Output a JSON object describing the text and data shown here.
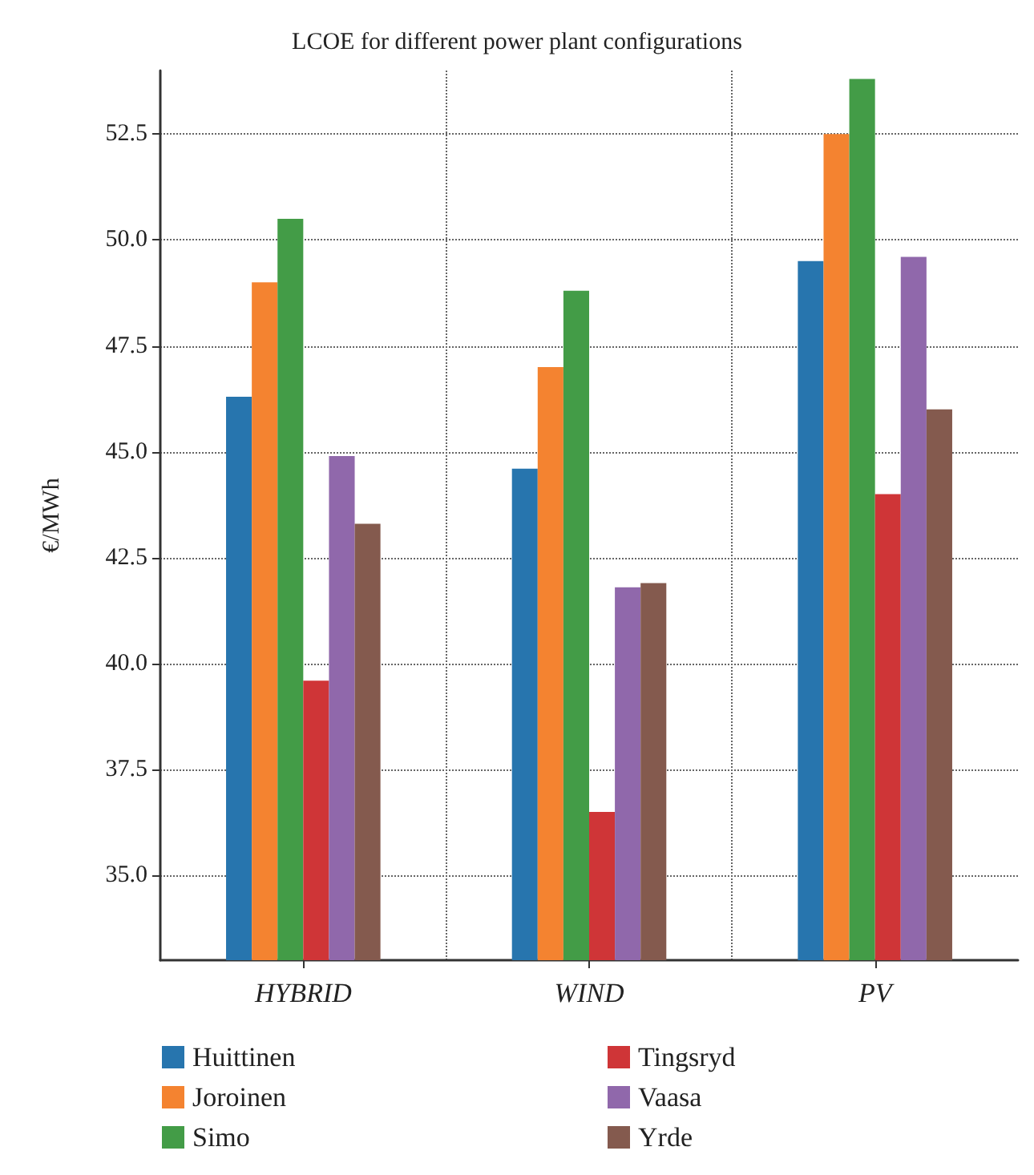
{
  "chart_data": {
    "type": "bar",
    "title": "LCOE for different power plant configurations",
    "ylabel": "€/MWh",
    "categories": [
      "HYBRID",
      "WIND",
      "PV"
    ],
    "series": [
      {
        "name": "Huittinen",
        "color": "#2775ae",
        "values": [
          46.3,
          44.6,
          49.5
        ]
      },
      {
        "name": "Joroinen",
        "color": "#f48330",
        "values": [
          49.0,
          47.0,
          52.5
        ]
      },
      {
        "name": "Simo",
        "color": "#439c47",
        "values": [
          50.5,
          48.8,
          53.8
        ]
      },
      {
        "name": "Tingsryd",
        "color": "#cf3537",
        "values": [
          39.6,
          36.5,
          44.0
        ]
      },
      {
        "name": "Vaasa",
        "color": "#9068ab",
        "values": [
          44.9,
          41.8,
          49.6
        ]
      },
      {
        "name": "Yrde",
        "color": "#845a4e",
        "values": [
          43.3,
          41.9,
          46.0
        ]
      }
    ],
    "ylim": [
      33,
      54
    ],
    "yticks": [
      {
        "value": 35,
        "label": "35.0"
      },
      37.5,
      {
        "value": 40,
        "label": "40.0"
      },
      42.5,
      {
        "value": 45,
        "label": "45.0"
      },
      47.5,
      {
        "value": 50,
        "label": "50.0"
      },
      52.5
    ],
    "grid": true,
    "legend": "bottom"
  }
}
